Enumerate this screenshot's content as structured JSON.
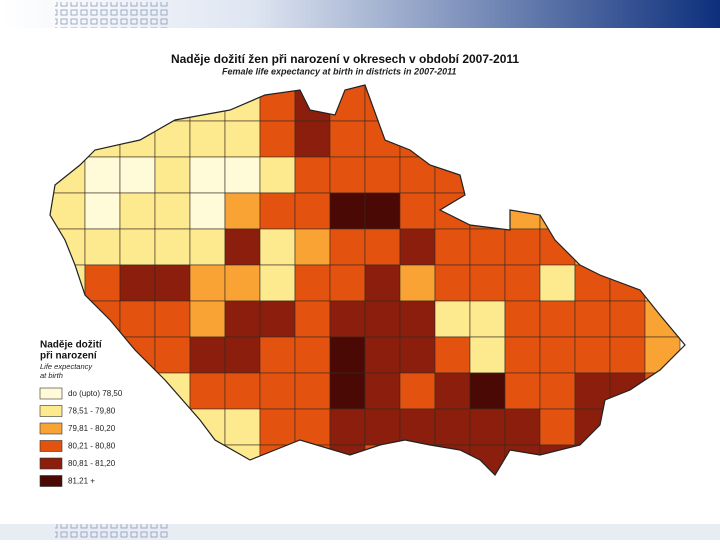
{
  "title": "Naděje dožití žen při narození v okresech v období 2007-2011",
  "subtitle": "Female life expectancy at birth in districts in 2007-2011",
  "legend": {
    "title": [
      "Naděje dožití",
      "při narození"
    ],
    "subtitle": [
      "Life expectancy",
      "at birth"
    ],
    "classes": [
      {
        "label": "do (upto) 78,50",
        "color": "#fffbd8"
      },
      {
        "label": "78,51 - 79,80",
        "color": "#fde98e"
      },
      {
        "label": "79,81 - 80,20",
        "color": "#f8a333"
      },
      {
        "label": "80,21 - 80,80",
        "color": "#e3520e"
      },
      {
        "label": "80,81 - 81,20",
        "color": "#8b1e0c"
      },
      {
        "label": "81,21 +",
        "color": "#4a0904"
      }
    ]
  }
}
